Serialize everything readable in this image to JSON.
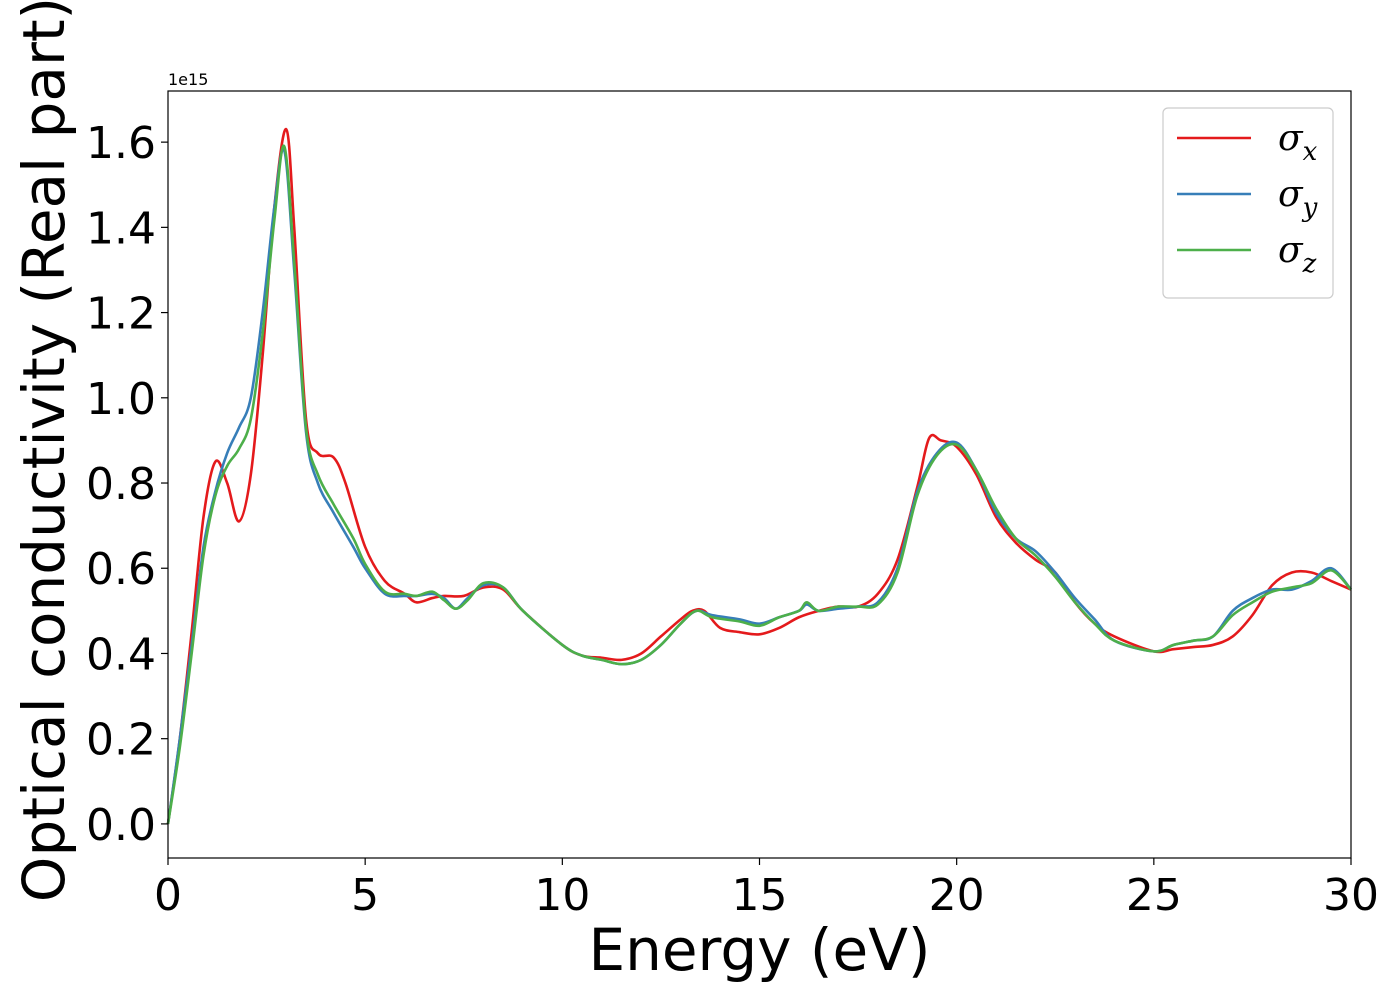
{
  "chart_data": {
    "type": "line",
    "xlabel": "Energy (eV)",
    "ylabel": "Optical conductivity (Real part)",
    "y_offset_text": "1e15",
    "y_scale": 1000000000000000.0,
    "xlim": [
      0,
      30
    ],
    "ylim": [
      -0.08,
      1.72
    ],
    "xticks": [
      0,
      5,
      10,
      15,
      20,
      25,
      30
    ],
    "xtick_labels": [
      "0",
      "5",
      "10",
      "15",
      "20",
      "25",
      "30"
    ],
    "yticks": [
      0.0,
      0.2,
      0.4,
      0.6,
      0.8,
      1.0,
      1.2,
      1.4,
      1.6
    ],
    "ytick_labels": [
      "0.0",
      "0.2",
      "0.4",
      "0.6",
      "0.8",
      "1.0",
      "1.2",
      "1.4",
      "1.6"
    ],
    "grid": false,
    "legend_position": "top-right",
    "series": [
      {
        "name": "σ",
        "subscript": "x",
        "color": "#e41a1c",
        "x": [
          0,
          0.3,
          0.6,
          0.9,
          1.2,
          1.5,
          1.8,
          2.1,
          2.4,
          2.7,
          3.0,
          3.2,
          3.5,
          3.8,
          4.2,
          4.5,
          5.0,
          5.5,
          6.0,
          6.3,
          6.7,
          7.0,
          7.5,
          8.0,
          8.5,
          9.0,
          10.0,
          10.5,
          11.0,
          11.5,
          12.0,
          12.5,
          13.0,
          13.3,
          13.6,
          14.0,
          14.5,
          15.0,
          15.5,
          16.0,
          16.5,
          17.0,
          17.5,
          18.0,
          18.5,
          19.0,
          19.3,
          19.6,
          20.0,
          20.5,
          21.0,
          21.5,
          22.0,
          22.5,
          23.0,
          23.5,
          24.0,
          25.0,
          25.5,
          26.0,
          26.5,
          27.0,
          27.5,
          28.0,
          28.5,
          29.0,
          29.5,
          30.0
        ],
        "y": [
          0.0,
          0.2,
          0.45,
          0.72,
          0.85,
          0.8,
          0.71,
          0.82,
          1.1,
          1.45,
          1.63,
          1.4,
          0.95,
          0.87,
          0.86,
          0.8,
          0.65,
          0.57,
          0.54,
          0.52,
          0.53,
          0.535,
          0.535,
          0.555,
          0.55,
          0.5,
          0.42,
          0.395,
          0.39,
          0.385,
          0.4,
          0.44,
          0.48,
          0.5,
          0.5,
          0.46,
          0.45,
          0.445,
          0.46,
          0.485,
          0.5,
          0.51,
          0.51,
          0.54,
          0.62,
          0.79,
          0.905,
          0.9,
          0.885,
          0.82,
          0.72,
          0.66,
          0.62,
          0.59,
          0.52,
          0.47,
          0.44,
          0.405,
          0.41,
          0.415,
          0.42,
          0.44,
          0.49,
          0.56,
          0.59,
          0.59,
          0.57,
          0.55
        ]
      },
      {
        "name": "σ",
        "subscript": "y",
        "color": "#377eb8",
        "x": [
          0,
          0.3,
          0.6,
          0.9,
          1.2,
          1.5,
          1.8,
          2.1,
          2.4,
          2.7,
          2.95,
          3.2,
          3.5,
          3.8,
          4.2,
          4.7,
          5.0,
          5.5,
          6.0,
          6.3,
          6.7,
          7.0,
          7.3,
          7.6,
          8.0,
          8.5,
          9.0,
          10.0,
          10.5,
          11.0,
          11.5,
          12.0,
          12.5,
          13.0,
          13.4,
          13.8,
          14.5,
          15.0,
          15.5,
          16.0,
          16.2,
          16.5,
          17.0,
          17.5,
          18.0,
          18.5,
          19.0,
          19.5,
          20.0,
          20.5,
          21.0,
          21.5,
          22.0,
          22.5,
          23.0,
          23.5,
          24.0,
          25.0,
          25.5,
          26.0,
          26.5,
          27.0,
          27.5,
          28.0,
          28.5,
          29.0,
          29.5,
          30.0
        ],
        "y": [
          0.0,
          0.2,
          0.42,
          0.65,
          0.78,
          0.87,
          0.93,
          1.0,
          1.2,
          1.45,
          1.58,
          1.3,
          0.92,
          0.8,
          0.73,
          0.65,
          0.6,
          0.54,
          0.535,
          0.535,
          0.54,
          0.53,
          0.505,
          0.53,
          0.56,
          0.555,
          0.5,
          0.42,
          0.395,
          0.385,
          0.375,
          0.385,
          0.42,
          0.47,
          0.5,
          0.49,
          0.48,
          0.47,
          0.485,
          0.5,
          0.515,
          0.5,
          0.505,
          0.51,
          0.52,
          0.6,
          0.78,
          0.87,
          0.895,
          0.83,
          0.73,
          0.67,
          0.64,
          0.59,
          0.53,
          0.48,
          0.43,
          0.405,
          0.42,
          0.43,
          0.44,
          0.5,
          0.53,
          0.55,
          0.55,
          0.57,
          0.6,
          0.55
        ]
      },
      {
        "name": "σ",
        "subscript": "z",
        "color": "#4daf4a",
        "x": [
          0,
          0.3,
          0.6,
          0.9,
          1.2,
          1.5,
          1.8,
          2.1,
          2.4,
          2.7,
          2.95,
          3.2,
          3.5,
          3.8,
          4.2,
          4.7,
          5.0,
          5.5,
          6.0,
          6.3,
          6.7,
          7.0,
          7.3,
          7.6,
          8.0,
          8.5,
          9.0,
          10.0,
          10.5,
          11.0,
          11.5,
          12.0,
          12.5,
          13.0,
          13.4,
          13.8,
          14.5,
          15.0,
          15.5,
          16.0,
          16.2,
          16.5,
          17.0,
          17.5,
          18.0,
          18.5,
          19.0,
          19.5,
          20.0,
          20.5,
          21.0,
          21.5,
          22.0,
          22.5,
          23.0,
          23.5,
          24.0,
          25.0,
          25.5,
          26.0,
          26.5,
          27.0,
          27.5,
          28.0,
          28.5,
          29.0,
          29.5,
          30.0
        ],
        "y": [
          0.0,
          0.18,
          0.4,
          0.63,
          0.77,
          0.84,
          0.88,
          0.95,
          1.15,
          1.42,
          1.59,
          1.32,
          0.93,
          0.82,
          0.75,
          0.67,
          0.61,
          0.545,
          0.54,
          0.535,
          0.545,
          0.525,
          0.505,
          0.525,
          0.565,
          0.555,
          0.5,
          0.42,
          0.395,
          0.385,
          0.375,
          0.385,
          0.42,
          0.47,
          0.5,
          0.485,
          0.475,
          0.465,
          0.485,
          0.5,
          0.52,
          0.5,
          0.51,
          0.51,
          0.515,
          0.59,
          0.77,
          0.865,
          0.89,
          0.83,
          0.74,
          0.67,
          0.63,
          0.58,
          0.52,
          0.47,
          0.43,
          0.405,
          0.42,
          0.43,
          0.44,
          0.49,
          0.52,
          0.545,
          0.555,
          0.565,
          0.595,
          0.55
        ]
      }
    ]
  }
}
